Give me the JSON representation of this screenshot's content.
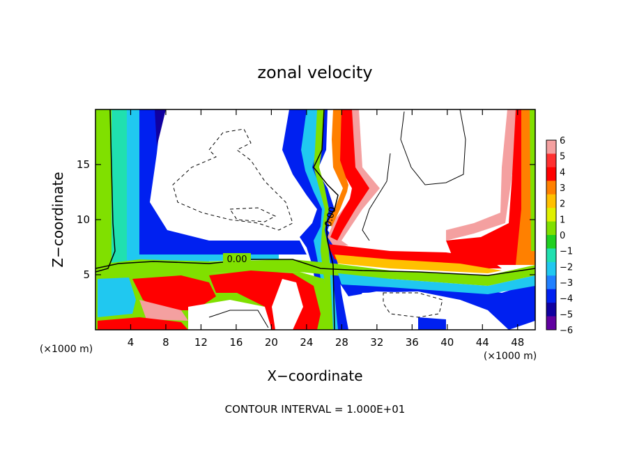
{
  "chart_data": {
    "type": "heatmap",
    "title": "zonal velocity",
    "xlabel": "X−coordinate",
    "ylabel": "Z−coordinate",
    "x_unit_label": "(×1000 m)",
    "z_unit_label": "(×1000 m)",
    "xlim": [
      0,
      50
    ],
    "ylim": [
      0,
      20
    ],
    "x_ticks": [
      4,
      8,
      12,
      16,
      20,
      24,
      28,
      32,
      36,
      40,
      44,
      48
    ],
    "y_ticks": [
      5,
      10,
      15
    ],
    "contour_labels": [
      "0.00",
      "0.00"
    ],
    "colorbar": {
      "levels": [
        6,
        5,
        4,
        3,
        2,
        1,
        0,
        -1,
        -2,
        -3,
        -4,
        -5,
        -6
      ],
      "colors": [
        "#f4a0a0",
        "#ff3030",
        "#ff0000",
        "#ff8000",
        "#ffc000",
        "#e0f000",
        "#80e000",
        "#20d020",
        "#20e0b0",
        "#20c8f0",
        "#2080ff",
        "#0020f0",
        "#1000a0",
        "#6000a0"
      ]
    },
    "footer": "CONTOUR INTERVAL =  1.000E+01",
    "grid": false
  }
}
